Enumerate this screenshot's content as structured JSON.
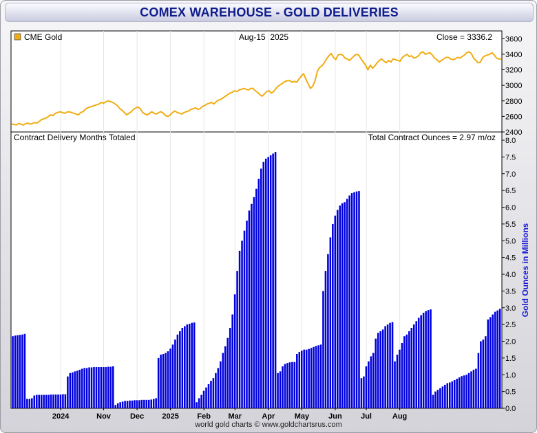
{
  "title": "COMEX WAREHOUSE - GOLD DELIVERIES",
  "footer": "world gold charts © www.goldchartsrus.com",
  "colors": {
    "gold": "#f0ac10",
    "bars": "#0000dd",
    "axis_title": "#1a1ad6"
  },
  "chart_data": [
    {
      "type": "line",
      "legend": "CME Gold",
      "date_label": "Aug-15  2025",
      "close_label": "Close = 3336.2",
      "ylim": [
        2400,
        3700
      ],
      "yticks": [
        2400,
        2600,
        2800,
        3000,
        3200,
        3400,
        3600
      ],
      "series": [
        {
          "name": "CME Gold",
          "values": [
            2505,
            2495,
            2490,
            2510,
            2500,
            2490,
            2505,
            2515,
            2500,
            2510,
            2520,
            2515,
            2535,
            2560,
            2570,
            2580,
            2600,
            2620,
            2610,
            2640,
            2650,
            2660,
            2650,
            2640,
            2655,
            2660,
            2650,
            2640,
            2630,
            2620,
            2650,
            2660,
            2690,
            2710,
            2720,
            2730,
            2740,
            2750,
            2760,
            2780,
            2770,
            2790,
            2800,
            2790,
            2780,
            2760,
            2740,
            2700,
            2680,
            2650,
            2620,
            2640,
            2660,
            2690,
            2710,
            2720,
            2700,
            2650,
            2630,
            2620,
            2640,
            2660,
            2640,
            2630,
            2650,
            2660,
            2640,
            2610,
            2600,
            2620,
            2650,
            2670,
            2650,
            2640,
            2630,
            2650,
            2660,
            2670,
            2690,
            2700,
            2710,
            2690,
            2700,
            2730,
            2740,
            2760,
            2770,
            2780,
            2760,
            2790,
            2810,
            2820,
            2840,
            2860,
            2880,
            2900,
            2910,
            2930,
            2920,
            2940,
            2950,
            2960,
            2950,
            2940,
            2960,
            2960,
            2930,
            2910,
            2880,
            2860,
            2890,
            2920,
            2930,
            2900,
            2920,
            2960,
            2990,
            3010,
            3030,
            3050,
            3060,
            3060,
            3040,
            3050,
            3040,
            3080,
            3120,
            3150,
            3080,
            3020,
            2960,
            2990,
            3060,
            3180,
            3230,
            3250,
            3290,
            3340,
            3380,
            3410,
            3360,
            3330,
            3390,
            3400,
            3390,
            3350,
            3340,
            3320,
            3350,
            3380,
            3400,
            3390,
            3340,
            3300,
            3260,
            3200,
            3260,
            3220,
            3250,
            3290,
            3320,
            3340,
            3310,
            3290,
            3320,
            3300,
            3340,
            3330,
            3320,
            3310,
            3360,
            3380,
            3400,
            3370,
            3380,
            3350,
            3360,
            3380,
            3420,
            3430,
            3400,
            3410,
            3420,
            3390,
            3350,
            3330,
            3300,
            3320,
            3340,
            3360,
            3360,
            3340,
            3330,
            3340,
            3360,
            3350,
            3370,
            3390,
            3420,
            3430,
            3410,
            3350,
            3320,
            3290,
            3300,
            3360,
            3380,
            3390,
            3400,
            3420,
            3390,
            3350,
            3340,
            3336
          ]
        }
      ]
    },
    {
      "type": "bar",
      "label": "Contract Delivery Months Totaled",
      "total_label": "Total Contract Ounces = 2.97 m/oz",
      "ylabel": "Gold Ounces in Millions",
      "ylim": [
        0,
        8.0
      ],
      "yticks": [
        "0.0",
        "0.5",
        "1.0",
        "1.5",
        "2.0",
        "2.5",
        "3.0",
        "3.5",
        "4.0",
        "4.5",
        "5.0",
        "5.5",
        "6.0",
        "6.5",
        "7.0",
        "7.5",
        "8.0"
      ],
      "xtick_labels": [
        {
          "label": "2024",
          "index": 20
        },
        {
          "label": "Nov",
          "index": 38
        },
        {
          "label": "Dec",
          "index": 52
        },
        {
          "label": "2025",
          "index": 66
        },
        {
          "label": "Feb",
          "index": 80
        },
        {
          "label": "Mar",
          "index": 93
        },
        {
          "label": "Apr",
          "index": 107
        },
        {
          "label": "May",
          "index": 121
        },
        {
          "label": "Jun",
          "index": 135
        },
        {
          "label": "Jul",
          "index": 148
        },
        {
          "label": "Aug",
          "index": 162
        }
      ],
      "values": [
        2.15,
        2.17,
        2.18,
        2.19,
        2.2,
        2.22,
        0.28,
        0.28,
        0.3,
        0.38,
        0.4,
        0.4,
        0.4,
        0.4,
        0.4,
        0.4,
        0.41,
        0.41,
        0.41,
        0.41,
        0.41,
        0.42,
        0.42,
        0.95,
        1.05,
        1.07,
        1.1,
        1.12,
        1.15,
        1.18,
        1.2,
        1.2,
        1.22,
        1.22,
        1.23,
        1.23,
        1.23,
        1.23,
        1.23,
        1.23,
        1.24,
        1.24,
        1.25,
        0.1,
        0.15,
        0.18,
        0.2,
        0.22,
        0.22,
        0.23,
        0.23,
        0.24,
        0.24,
        0.24,
        0.25,
        0.25,
        0.25,
        0.25,
        0.26,
        0.28,
        0.3,
        1.5,
        1.6,
        1.62,
        1.65,
        1.7,
        1.78,
        1.9,
        2.05,
        2.2,
        2.3,
        2.4,
        2.45,
        2.5,
        2.52,
        2.55,
        2.56,
        0.18,
        0.3,
        0.4,
        0.52,
        0.62,
        0.72,
        0.82,
        0.9,
        1.05,
        1.2,
        1.4,
        1.65,
        1.85,
        2.1,
        2.4,
        2.8,
        3.4,
        4.1,
        4.7,
        5.0,
        5.3,
        5.6,
        5.9,
        6.1,
        6.3,
        6.55,
        6.85,
        7.15,
        7.35,
        7.45,
        7.5,
        7.55,
        7.6,
        7.65,
        1.05,
        1.1,
        1.25,
        1.32,
        1.35,
        1.37,
        1.38,
        1.38,
        1.62,
        1.68,
        1.72,
        1.75,
        1.75,
        1.77,
        1.8,
        1.83,
        1.86,
        1.88,
        1.9,
        3.5,
        4.1,
        4.6,
        5.1,
        5.5,
        5.75,
        5.92,
        6.05,
        6.12,
        6.15,
        6.25,
        6.35,
        6.42,
        6.45,
        6.47,
        6.48,
        0.9,
        0.95,
        1.25,
        1.4,
        1.55,
        1.65,
        2.08,
        2.25,
        2.3,
        2.35,
        2.45,
        2.5,
        2.55,
        2.57,
        1.4,
        1.6,
        1.75,
        1.95,
        2.15,
        2.2,
        2.3,
        2.4,
        2.5,
        2.6,
        2.7,
        2.78,
        2.85,
        2.9,
        2.93,
        2.95,
        0.4,
        0.5,
        0.55,
        0.6,
        0.65,
        0.7,
        0.75,
        0.77,
        0.8,
        0.84,
        0.88,
        0.92,
        0.96,
        0.98,
        1.0,
        1.05,
        1.1,
        1.15,
        1.18,
        1.65,
        2.0,
        2.05,
        2.15,
        2.65,
        2.72,
        2.8,
        2.88,
        2.92,
        2.97
      ]
    }
  ]
}
